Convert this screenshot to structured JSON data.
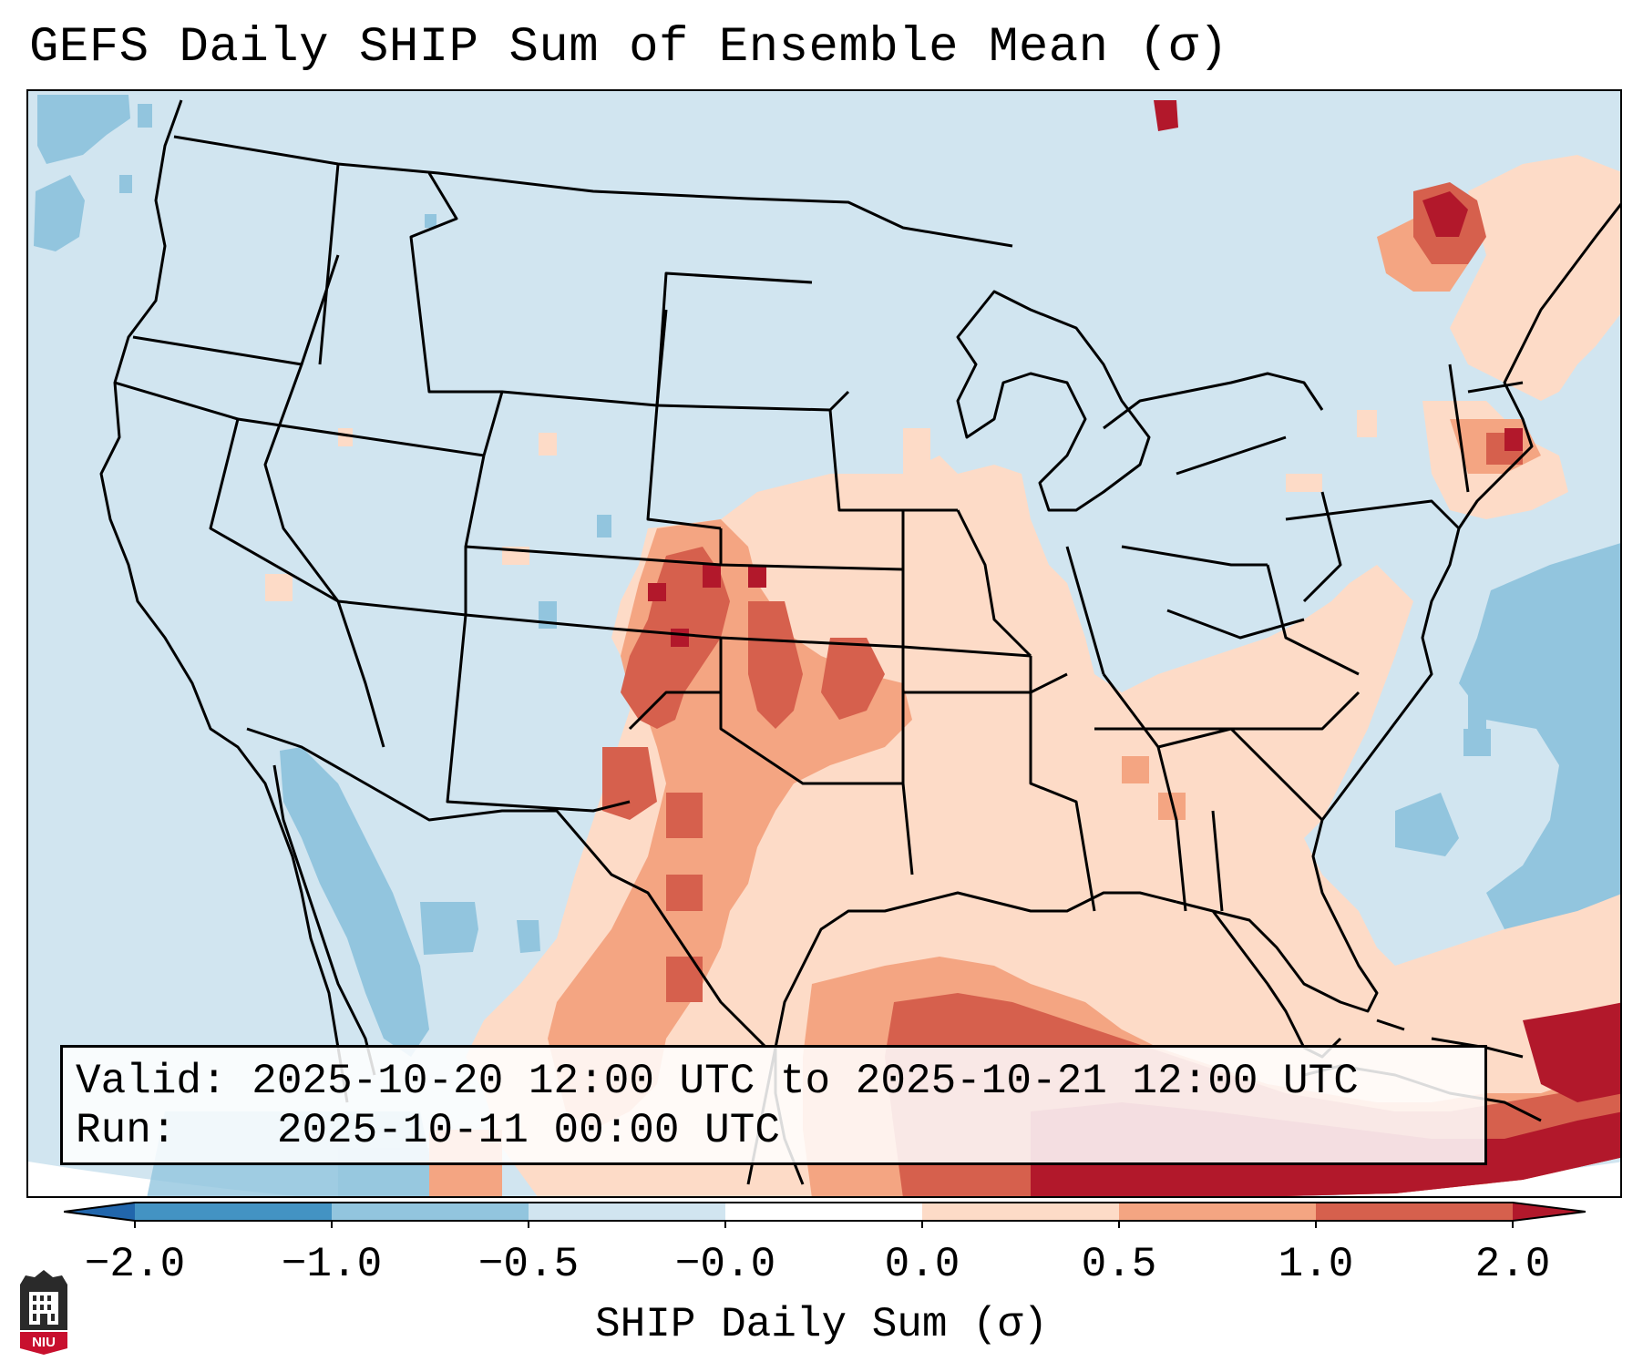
{
  "title": "GEFS Daily SHIP Sum of Ensemble Mean (σ)",
  "info": {
    "valid_label": "Valid:",
    "valid_value": "2025-10-20 12:00 UTC to 2025-10-21 12:00 UTC",
    "run_label": "Run:",
    "run_value": "2025-10-11 00:00 UTC"
  },
  "colorbar": {
    "label": "SHIP Daily Sum (σ)",
    "ticks": [
      "−2.0",
      "−1.0",
      "−0.5",
      "−0.0",
      "0.0",
      "0.5",
      "1.0",
      "2.0"
    ],
    "colors": {
      "lt_-2": "#2166ac",
      "-2_-1": "#4393c3",
      "-1_-0.5": "#92c5de",
      "-0.5_0": "#d1e5f0",
      "0_0.5": "#fddbc7",
      "0.5_1": "#f4a582",
      "1_2": "#d6604d",
      "gt_2": "#b2182b"
    }
  },
  "logo": {
    "text": "NIU",
    "icon": "university-seal-icon"
  },
  "map": {
    "projection": "lambert-conformal",
    "region": "Contiguous United States",
    "background_value_color": "#d1e5f0",
    "border_color": "#000000"
  }
}
